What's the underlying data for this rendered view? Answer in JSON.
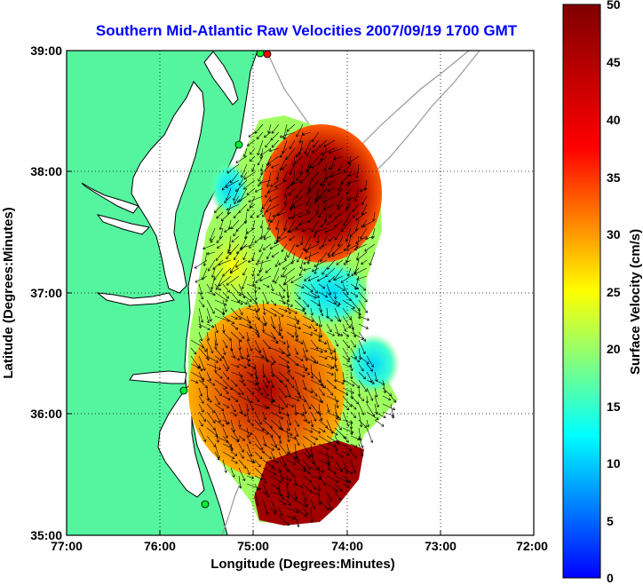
{
  "title": "Southern Mid-Atlantic Raw Velocities 2007/09/19 1700 GMT",
  "x_axis": {
    "label": "Longitude (Degrees:Minutes)",
    "ticks": [
      "77:00",
      "76:00",
      "75:00",
      "74:00",
      "73:00",
      "72:00"
    ]
  },
  "y_axis": {
    "label": "Latitude (Degrees:Minutes)",
    "ticks": [
      "39:00",
      "38:00",
      "37:00",
      "36:00",
      "35:00"
    ]
  },
  "colorbar": {
    "label": "Surface Velocity (cm/s)",
    "ticks": [
      "50",
      "45",
      "40",
      "35",
      "30",
      "25",
      "20",
      "15",
      "10",
      "5",
      "0"
    ],
    "range": [
      0,
      50
    ],
    "colormap": "jet"
  },
  "colors": {
    "title": "#0000ff",
    "land": "#55f5a0",
    "coastline": "#000000",
    "bathymetry": "#9a9a9a",
    "station_marker": "#00ee33",
    "station_marker_alt": "#ff0000"
  },
  "map": {
    "projection": "lat-lon",
    "lon_range": [
      -77,
      -72
    ],
    "lat_range": [
      35,
      39
    ],
    "grid": true
  }
}
